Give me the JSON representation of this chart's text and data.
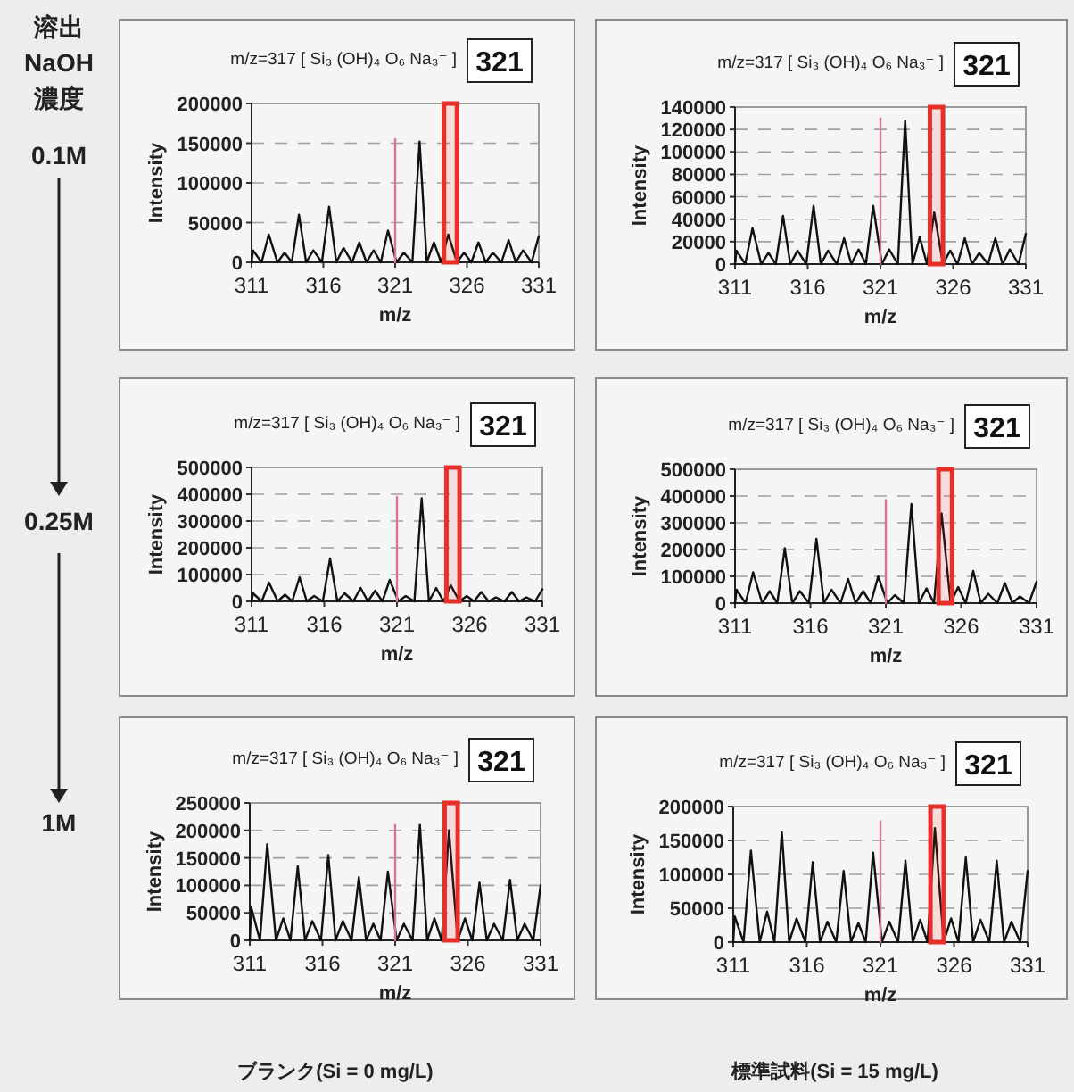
{
  "chart_data": [
    {
      "type": "line",
      "title": "m/z=317 [ Si₃ (OH)₄ O₆ Na₃⁻ ]",
      "xlabel": "m/z",
      "ylabel": "Intensity",
      "xlim": [
        311,
        331
      ],
      "xticks": [
        311,
        316,
        321,
        326,
        331
      ],
      "ylim": [
        0,
        200000
      ],
      "yticks": [
        0,
        50000,
        100000,
        150000,
        200000
      ],
      "grid": "y",
      "annotations": [
        "321"
      ],
      "bands": [
        {
          "axis": "x",
          "from": 324.4,
          "to": 325.3,
          "color": "#e8302a"
        }
      ],
      "series": [
        {
          "color": "#111111",
          "x": [
            311.0,
            311.1,
            311.7,
            312.2,
            312.8,
            313.3,
            313.8,
            314.3,
            314.8,
            315.3,
            315.9,
            316.4,
            316.9,
            317.4,
            318.0,
            318.5,
            319.0,
            319.5,
            320.0,
            320.5,
            321.1,
            321.6,
            322.2,
            322.7,
            323.2,
            323.7,
            324.2,
            324.7,
            325.3,
            325.8,
            326.3,
            326.8,
            327.3,
            327.8,
            328.4,
            328.9,
            329.4,
            329.9,
            330.5,
            331.0
          ],
          "values": [
            0,
            15000,
            0,
            35000,
            0,
            12000,
            0,
            60000,
            0,
            15000,
            0,
            70000,
            0,
            18000,
            0,
            25000,
            0,
            15000,
            0,
            40000,
            0,
            12000,
            0,
            152000,
            0,
            25000,
            0,
            35000,
            0,
            12000,
            0,
            25000,
            0,
            12000,
            0,
            28000,
            0,
            15000,
            0,
            33000
          ]
        },
        {
          "color": "#e0709a",
          "x": [
            321,
            321
          ],
          "values": [
            0,
            155000
          ]
        }
      ]
    },
    {
      "type": "line",
      "title": "m/z=317 [ Si₃ (OH)₄ O₆ Na₃⁻ ]",
      "xlabel": "m/z",
      "ylabel": "Intensity",
      "xlim": [
        311,
        331
      ],
      "xticks": [
        311,
        316,
        321,
        326,
        331
      ],
      "ylim": [
        0,
        140000
      ],
      "yticks": [
        0,
        20000,
        40000,
        60000,
        80000,
        100000,
        120000,
        140000
      ],
      "grid": "y",
      "annotations": [
        "321"
      ],
      "bands": [
        {
          "axis": "x",
          "from": 324.4,
          "to": 325.3,
          "color": "#e8302a"
        }
      ],
      "series": [
        {
          "color": "#111111",
          "x": [
            311.0,
            311.1,
            311.7,
            312.2,
            312.8,
            313.3,
            313.8,
            314.3,
            314.8,
            315.3,
            315.9,
            316.4,
            316.9,
            317.4,
            318.0,
            318.5,
            319.0,
            319.5,
            320.0,
            320.5,
            321.1,
            321.6,
            322.2,
            322.7,
            323.2,
            323.7,
            324.2,
            324.7,
            325.3,
            325.8,
            326.3,
            326.8,
            327.3,
            327.8,
            328.4,
            328.9,
            329.4,
            329.9,
            330.5,
            331.0
          ],
          "values": [
            0,
            12000,
            0,
            32000,
            0,
            10000,
            0,
            43000,
            0,
            12000,
            0,
            52000,
            0,
            12000,
            0,
            23000,
            0,
            13000,
            0,
            52000,
            0,
            13000,
            0,
            128000,
            0,
            24000,
            0,
            46000,
            0,
            12000,
            0,
            23000,
            0,
            10000,
            0,
            23000,
            0,
            13000,
            0,
            27000
          ]
        },
        {
          "color": "#e0709a",
          "x": [
            321,
            321
          ],
          "values": [
            0,
            130000
          ]
        }
      ]
    },
    {
      "type": "line",
      "title": "m/z=317 [ Si₃ (OH)₄ O₆ Na₃⁻ ]",
      "xlabel": "m/z",
      "ylabel": "Intensity",
      "xlim": [
        311,
        331
      ],
      "xticks": [
        311,
        316,
        321,
        326,
        331
      ],
      "ylim": [
        0,
        500000
      ],
      "yticks": [
        0,
        100000,
        200000,
        300000,
        400000,
        500000
      ],
      "grid": "y",
      "annotations": [
        "321"
      ],
      "bands": [
        {
          "axis": "x",
          "from": 324.4,
          "to": 325.3,
          "color": "#e8302a"
        }
      ],
      "series": [
        {
          "color": "#111111",
          "x": [
            311.0,
            311.1,
            311.7,
            312.2,
            312.8,
            313.3,
            313.8,
            314.3,
            314.8,
            315.3,
            315.9,
            316.4,
            316.9,
            317.4,
            318.0,
            318.5,
            319.0,
            319.5,
            320.0,
            320.5,
            321.1,
            321.6,
            322.2,
            322.7,
            323.2,
            323.7,
            324.2,
            324.7,
            325.3,
            325.8,
            326.3,
            326.8,
            327.3,
            327.8,
            328.4,
            328.9,
            329.4,
            329.9,
            330.5,
            331.0
          ],
          "values": [
            0,
            30000,
            0,
            70000,
            0,
            25000,
            0,
            90000,
            0,
            20000,
            0,
            160000,
            0,
            30000,
            0,
            50000,
            0,
            40000,
            0,
            80000,
            0,
            20000,
            0,
            385000,
            0,
            50000,
            0,
            60000,
            0,
            20000,
            0,
            35000,
            0,
            15000,
            0,
            35000,
            0,
            15000,
            0,
            45000
          ]
        },
        {
          "color": "#e0709a",
          "x": [
            321,
            321
          ],
          "values": [
            0,
            390000
          ]
        }
      ]
    },
    {
      "type": "line",
      "title": "m/z=317 [ Si₃ (OH)₄ O₆ Na₃⁻ ]",
      "xlabel": "m/z",
      "ylabel": "Intensity",
      "xlim": [
        311,
        331
      ],
      "xticks": [
        311,
        316,
        321,
        326,
        331
      ],
      "ylim": [
        0,
        500000
      ],
      "yticks": [
        0,
        100000,
        200000,
        300000,
        400000,
        500000
      ],
      "grid": "y",
      "annotations": [
        "321"
      ],
      "bands": [
        {
          "axis": "x",
          "from": 324.5,
          "to": 325.4,
          "color": "#e8302a"
        }
      ],
      "series": [
        {
          "color": "#111111",
          "x": [
            311.0,
            311.1,
            311.7,
            312.2,
            312.8,
            313.3,
            313.8,
            314.3,
            314.8,
            315.3,
            315.9,
            316.4,
            316.9,
            317.4,
            318.0,
            318.5,
            319.0,
            319.5,
            320.0,
            320.5,
            321.1,
            321.6,
            322.2,
            322.7,
            323.2,
            323.7,
            324.2,
            324.7,
            325.3,
            325.8,
            326.3,
            326.8,
            327.3,
            327.8,
            328.4,
            328.9,
            329.4,
            329.9,
            330.5,
            331.0
          ],
          "values": [
            0,
            50000,
            0,
            115000,
            0,
            45000,
            0,
            205000,
            0,
            45000,
            0,
            240000,
            0,
            50000,
            0,
            90000,
            0,
            45000,
            0,
            100000,
            0,
            30000,
            0,
            370000,
            0,
            55000,
            0,
            335000,
            0,
            60000,
            0,
            120000,
            0,
            35000,
            0,
            75000,
            0,
            25000,
            0,
            80000
          ]
        },
        {
          "color": "#e0709a",
          "x": [
            321,
            321
          ],
          "values": [
            0,
            385000
          ]
        }
      ]
    },
    {
      "type": "line",
      "title": "m/z=317 [ Si₃ (OH)₄ O₆ Na₃⁻ ]",
      "xlabel": "m/z",
      "ylabel": "Intensity",
      "xlim": [
        311,
        331
      ],
      "xticks": [
        311,
        316,
        321,
        326,
        331
      ],
      "ylim": [
        0,
        250000
      ],
      "yticks": [
        0,
        50000,
        100000,
        150000,
        200000,
        250000
      ],
      "grid": "y",
      "annotations": [
        "321"
      ],
      "bands": [
        {
          "axis": "x",
          "from": 324.4,
          "to": 325.3,
          "color": "#e8302a"
        }
      ],
      "series": [
        {
          "color": "#111111",
          "x": [
            311.0,
            311.1,
            311.7,
            312.2,
            312.8,
            313.3,
            313.8,
            314.3,
            314.8,
            315.3,
            315.9,
            316.4,
            316.9,
            317.4,
            318.0,
            318.5,
            319.0,
            319.5,
            320.0,
            320.5,
            321.1,
            321.6,
            322.2,
            322.7,
            323.2,
            323.7,
            324.2,
            324.7,
            325.3,
            325.8,
            326.3,
            326.8,
            327.3,
            327.8,
            328.4,
            328.9,
            329.4,
            329.9,
            330.5,
            331.0
          ],
          "values": [
            0,
            60000,
            0,
            175000,
            0,
            40000,
            0,
            135000,
            0,
            35000,
            0,
            155000,
            0,
            35000,
            0,
            115000,
            0,
            30000,
            0,
            125000,
            0,
            30000,
            0,
            210000,
            0,
            40000,
            0,
            200000,
            0,
            40000,
            0,
            105000,
            0,
            30000,
            0,
            110000,
            0,
            30000,
            0,
            100000
          ]
        },
        {
          "color": "#e0709a",
          "x": [
            321,
            321
          ],
          "values": [
            0,
            210000
          ]
        }
      ]
    },
    {
      "type": "line",
      "title": "m/z=317 [ Si₃ (OH)₄ O₆ Na₃⁻ ]",
      "xlabel": "m/z",
      "ylabel": "Intensity",
      "xlim": [
        311,
        331
      ],
      "xticks": [
        311,
        316,
        321,
        326,
        331
      ],
      "ylim": [
        0,
        200000
      ],
      "yticks": [
        0,
        50000,
        100000,
        150000,
        200000
      ],
      "grid": "y",
      "annotations": [
        "321"
      ],
      "bands": [
        {
          "axis": "x",
          "from": 324.4,
          "to": 325.3,
          "color": "#e8302a"
        }
      ],
      "series": [
        {
          "color": "#111111",
          "x": [
            311.0,
            311.1,
            311.7,
            312.2,
            312.8,
            313.3,
            313.8,
            314.3,
            314.8,
            315.3,
            315.9,
            316.4,
            316.9,
            317.4,
            318.0,
            318.5,
            319.0,
            319.5,
            320.0,
            320.5,
            321.1,
            321.6,
            322.2,
            322.7,
            323.2,
            323.7,
            324.2,
            324.7,
            325.3,
            325.8,
            326.3,
            326.8,
            327.3,
            327.8,
            328.4,
            328.9,
            329.4,
            329.9,
            330.5,
            331.0
          ],
          "values": [
            0,
            38000,
            0,
            135000,
            0,
            45000,
            0,
            162000,
            0,
            35000,
            0,
            118000,
            0,
            30000,
            0,
            105000,
            0,
            28000,
            0,
            132000,
            0,
            30000,
            0,
            120000,
            0,
            33000,
            0,
            168000,
            0,
            35000,
            0,
            125000,
            0,
            33000,
            0,
            120000,
            0,
            30000,
            0,
            105000
          ]
        },
        {
          "color": "#e0709a",
          "x": [
            321,
            321
          ],
          "values": [
            0,
            178000
          ]
        }
      ]
    },
    {
      "type": "other",
      "annotations": [
        "溶出\nNaOH\n濃度",
        "0.1M",
        "0.25M",
        "1M",
        "ブランク(Si = 0 mg/L)",
        "標準試料(Si = 15 mg/L)"
      ]
    }
  ]
}
